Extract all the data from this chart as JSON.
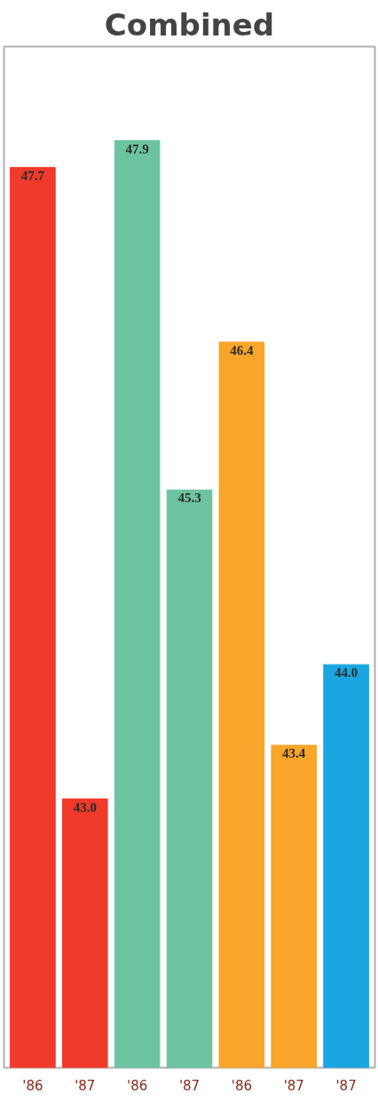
{
  "chart_data": {
    "type": "bar",
    "title": "Combined",
    "categories": [
      "'86",
      "'87",
      "'86",
      "'87",
      "'86",
      "'87",
      "'87"
    ],
    "values": [
      47.7,
      43.0,
      47.9,
      45.3,
      46.4,
      43.4,
      44.0
    ],
    "value_labels": [
      "47.7",
      "43.0",
      "47.9",
      "45.3",
      "46.4",
      "43.4",
      "44.0"
    ],
    "colors": [
      "#f03a2a",
      "#f03a2a",
      "#6cc4a0",
      "#6cc4a0",
      "#f8a52a",
      "#f8a52a",
      "#1aa6e0"
    ],
    "ylim": [
      41.0,
      48.6
    ],
    "tick_labels": "x",
    "grid": false
  }
}
